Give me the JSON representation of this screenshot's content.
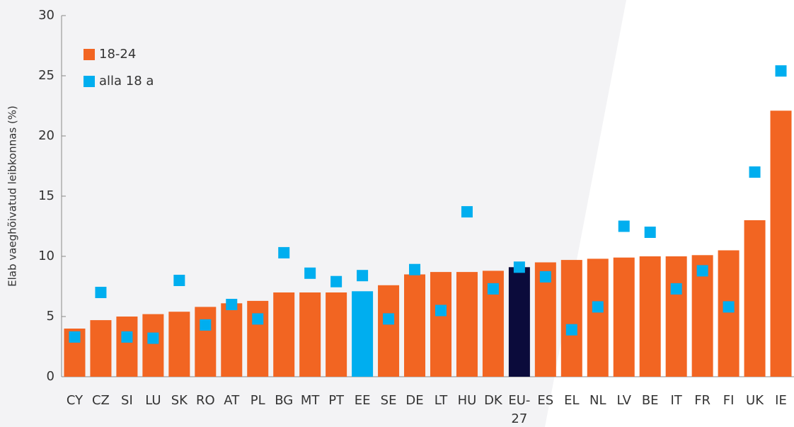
{
  "chart_data": {
    "type": "bar",
    "ylabel": "Elab vaeghõivatud leibkonnas (%)",
    "categories": [
      "CY",
      "CZ",
      "SI",
      "LU",
      "SK",
      "RO",
      "AT",
      "PL",
      "BG",
      "MT",
      "PT",
      "EE",
      "SE",
      "DE",
      "LT",
      "HU",
      "DK",
      "EU-27",
      "ES",
      "EL",
      "NL",
      "LV",
      "BE",
      "IT",
      "FR",
      "FI",
      "UK",
      "IE"
    ],
    "series": [
      {
        "name": "18-24",
        "color": "#f26522",
        "colors": [
          "#f26522",
          "#f26522",
          "#f26522",
          "#f26522",
          "#f26522",
          "#f26522",
          "#f26522",
          "#f26522",
          "#f26522",
          "#f26522",
          "#f26522",
          "#00aeef",
          "#f26522",
          "#f26522",
          "#f26522",
          "#f26522",
          "#f26522",
          "#0b0b3b",
          "#f26522",
          "#f26522",
          "#f26522",
          "#f26522",
          "#f26522",
          "#f26522",
          "#f26522",
          "#f26522",
          "#f26522",
          "#f26522"
        ],
        "values": [
          4.0,
          4.7,
          5.0,
          5.2,
          5.4,
          5.8,
          6.1,
          6.3,
          7.0,
          7.0,
          7.0,
          7.1,
          7.6,
          8.5,
          8.7,
          8.7,
          8.8,
          9.1,
          9.5,
          9.7,
          9.8,
          9.9,
          10.0,
          10.0,
          10.1,
          10.5,
          13.0,
          22.1
        ]
      },
      {
        "name": "alla 18 a",
        "color": "#00aeef",
        "marker": "square",
        "values": [
          3.3,
          7.0,
          3.3,
          3.2,
          8.0,
          4.3,
          6.0,
          4.8,
          10.3,
          8.6,
          7.9,
          8.4,
          4.8,
          8.9,
          5.5,
          13.7,
          7.3,
          9.1,
          8.3,
          3.9,
          5.8,
          12.5,
          12.0,
          7.3,
          8.8,
          5.8,
          17.0,
          25.4
        ]
      }
    ],
    "ylim": [
      0,
      30
    ],
    "yticks": [
      0,
      5,
      10,
      15,
      20,
      25,
      30
    ],
    "legend": "upper left"
  }
}
